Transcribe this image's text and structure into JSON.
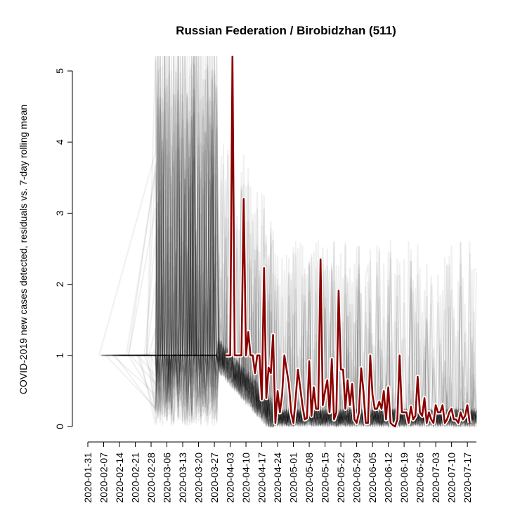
{
  "chart_data": {
    "type": "line",
    "title": "Russian Federation / Birobidzhan (511)",
    "xlabel": "",
    "ylabel": "COVID-2019 new cases detected, residuals vs. 7-day rolling mean",
    "ylim": [
      0,
      5
    ],
    "y_ticks": [
      "0",
      "1",
      "2",
      "3",
      "4",
      "5"
    ],
    "x_ticks": [
      "2020-01-31",
      "2020-02-07",
      "2020-02-14",
      "2020-02-21",
      "2020-02-28",
      "2020-03-06",
      "2020-03-13",
      "2020-03-20",
      "2020-03-27",
      "2020-04-03",
      "2020-04-10",
      "2020-04-17",
      "2020-04-24",
      "2020-05-01",
      "2020-05-08",
      "2020-05-15",
      "2020-05-22",
      "2020-05-29",
      "2020-06-05",
      "2020-06-12",
      "2020-06-19",
      "2020-06-26",
      "2020-07-03",
      "2020-07-10",
      "2020-07-17"
    ],
    "x_range": [
      "2020-01-31",
      "2020-07-21"
    ],
    "grid": false,
    "colors": {
      "highlight": "#8b0000",
      "background": "#000000"
    },
    "series": [
      {
        "start_date": "2020-04-01",
        "values": [
          1.0,
          1.0,
          1.0,
          5.2,
          1.0,
          1.0,
          1.0,
          1.0,
          3.2,
          1.0,
          1.33,
          1.0,
          1.0,
          0.75,
          1.0,
          1.0,
          0.38,
          2.23,
          0.4,
          0.83,
          0.75,
          1.29,
          0.05,
          0.5,
          0.2,
          0.45,
          1.0,
          0.8,
          0.6,
          0.2,
          0.05,
          0.4,
          0.8,
          0.55,
          0.3,
          0.1,
          0.12,
          0.92,
          0.15,
          0.55,
          0.25,
          0.25,
          2.35,
          0.3,
          0.5,
          0.65,
          0.2,
          0.95,
          0.1,
          0.2,
          1.91,
          0.8,
          0.8,
          0.25,
          0.65,
          0.3,
          0.6,
          0.1,
          0.05,
          0.2,
          0.82,
          0.5,
          0.05,
          0.05,
          1.0,
          0.45,
          0.25,
          0.25,
          0.35,
          0.25,
          0.5,
          0.1,
          0.55,
          0.05,
          0.02,
          0.0,
          0.1,
          1.0,
          0.2,
          0.2,
          0.2,
          0.05,
          0.28,
          0.1,
          0.15,
          0.7,
          0.2,
          0.15,
          0.4,
          0.05,
          0.2,
          0.1,
          0.05,
          0.3,
          0.2,
          0.2,
          0.3,
          0.05,
          0.1,
          0.2,
          0.25,
          0.1,
          0.1,
          0.05,
          0.2,
          0.1,
          0.15,
          0.3,
          0.05
        ]
      }
    ]
  }
}
